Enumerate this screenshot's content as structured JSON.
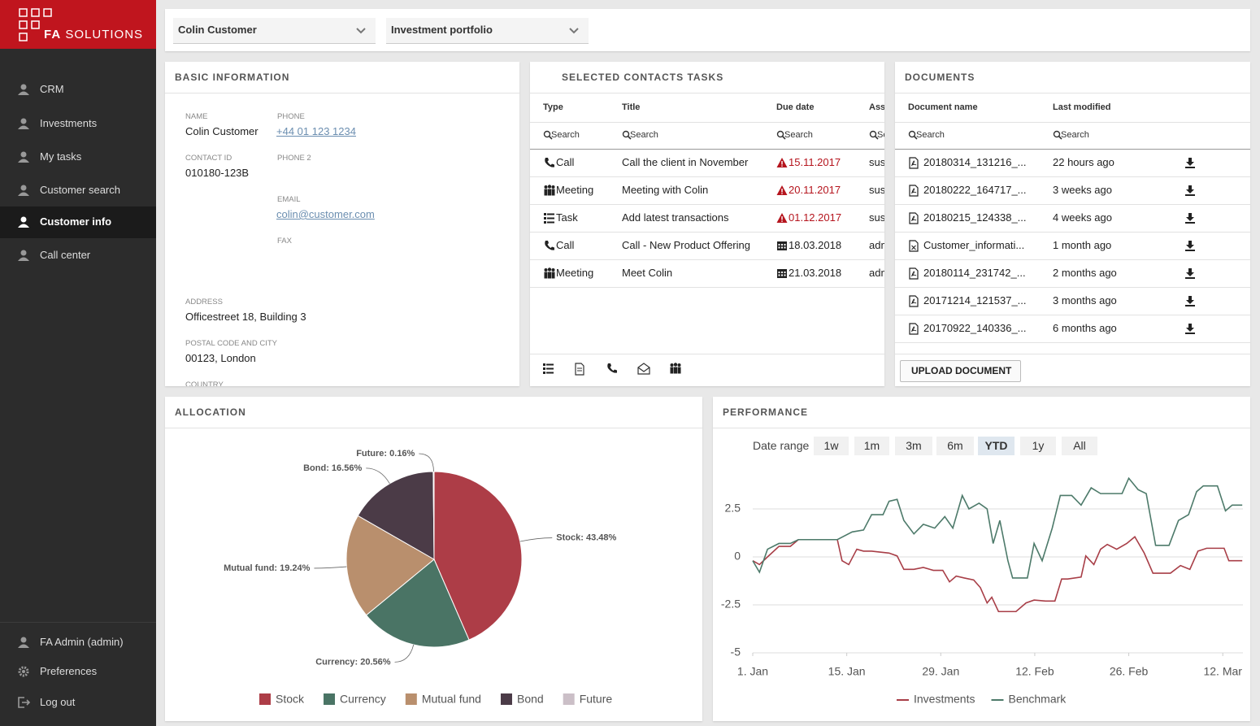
{
  "sidebar": {
    "logo_bold": "FA",
    "logo_text": "SOLUTIONS",
    "nav": [
      {
        "label": "CRM"
      },
      {
        "label": "Investments"
      },
      {
        "label": "My tasks"
      },
      {
        "label": "Customer search"
      },
      {
        "label": "Customer info",
        "active": true
      },
      {
        "label": "Call center"
      }
    ],
    "user_menu": [
      "FA Admin (admin)",
      "Preferences",
      "Log out"
    ]
  },
  "selectors": [
    "Colin Customer",
    "Investment portfolio"
  ],
  "basic_information": {
    "title": "BASIC INFORMATION",
    "fields": [
      {
        "label": "NAME",
        "value": "Colin Customer"
      },
      {
        "label": "PHONE",
        "value": "+44 01 123 1234",
        "link": true
      },
      {
        "label": "CONTACT ID",
        "value": "010180-123B"
      },
      {
        "label": "PHONE 2"
      },
      {
        "label": "EMAIL",
        "value": "colin@customer.com",
        "link": true
      },
      {
        "label": "FAX"
      },
      {
        "label": "ADDRESS",
        "value": "Officestreet 18, Building 3"
      },
      {
        "label": "POSTAL CODE AND CITY",
        "value": "00123, London"
      },
      {
        "label": "COUNTRY"
      }
    ]
  },
  "tasks": {
    "title": "SELECTED CONTACTS TASKS",
    "columns": [
      "Type",
      "Title",
      "Due date",
      "Assi"
    ],
    "search_placeholder": "Search",
    "rows": [
      {
        "type": "Call",
        "title": "Call the client in November",
        "due": "15.11.2017",
        "overdue": true,
        "assignee": "sus"
      },
      {
        "type": "Meeting",
        "title": "Meeting with Colin",
        "due": "20.11.2017",
        "overdue": true,
        "assignee": "sus"
      },
      {
        "type": "Task",
        "title": "Add latest transactions",
        "due": "01.12.2017",
        "overdue": true,
        "assignee": "sus"
      },
      {
        "type": "Call",
        "title": "Call - New Product Offering",
        "due": "18.03.2018",
        "overdue": false,
        "assignee": "adm"
      },
      {
        "type": "Meeting",
        "title": "Meet Colin",
        "due": "21.03.2018",
        "overdue": false,
        "assignee": "adm"
      }
    ]
  },
  "documents": {
    "title": "DOCUMENTS",
    "columns": [
      "Document name",
      "Last modified"
    ],
    "search_placeholder": "Search",
    "rows": [
      {
        "name": "20180314_131216_...",
        "modified": "22 hours ago"
      },
      {
        "name": "20180222_164717_...",
        "modified": "3 weeks ago"
      },
      {
        "name": "20180215_124338_...",
        "modified": "4 weeks ago"
      },
      {
        "name": "Customer_informati...",
        "modified": "1 month ago"
      },
      {
        "name": "20180114_231742_...",
        "modified": "2 months ago"
      },
      {
        "name": "20171214_121537_...",
        "modified": "3 months ago"
      },
      {
        "name": "20170922_140336_...",
        "modified": "6 months ago"
      }
    ],
    "upload_button": "UPLOAD DOCUMENT"
  },
  "allocation": {
    "title": "ALLOCATION"
  },
  "performance": {
    "title": "PERFORMANCE",
    "date_range_label": "Date range",
    "ranges": [
      {
        "label": "1w"
      },
      {
        "label": "1m"
      },
      {
        "label": "3m"
      },
      {
        "label": "6m"
      },
      {
        "label": "YTD",
        "active": true
      },
      {
        "label": "1y"
      },
      {
        "label": "All"
      }
    ]
  },
  "chart_data": [
    {
      "type": "pie",
      "categories": [
        "Stock",
        "Currency",
        "Mutual fund",
        "Bond",
        "Future"
      ],
      "values": [
        43.48,
        20.56,
        19.24,
        16.56,
        0.16
      ],
      "value_labels": [
        "Stock: 43.48%",
        "Currency: 20.56%",
        "Mutual fund: 19.24%",
        "Bond: 16.56%",
        "Future: 0.16%"
      ],
      "colors": [
        "#ad3d47",
        "#4a7465",
        "#b98f6d",
        "#4b3b47",
        "#cbbfc7"
      ],
      "legend": "bottom"
    },
    {
      "type": "line",
      "xlim": [
        0,
        73
      ],
      "xticks": [
        {
          "value": 0,
          "label": "1. Jan"
        },
        {
          "value": 14,
          "label": "15. Jan"
        },
        {
          "value": 28,
          "label": "29. Jan"
        },
        {
          "value": 42,
          "label": "12. Feb"
        },
        {
          "value": 56,
          "label": "26. Feb"
        },
        {
          "value": 70,
          "label": "12. Mar"
        }
      ],
      "ylim": [
        -5,
        5
      ],
      "yticks": [
        -5,
        -2.5,
        0,
        2.5
      ],
      "grid": true,
      "legend": "bottom",
      "series": [
        {
          "name": "Investments",
          "color": "#a83e47",
          "x": [
            0,
            1.0,
            2.2,
            3.9,
            5.6,
            6.8,
            12.6,
            13.3,
            14.3,
            15.5,
            16.5,
            17.7,
            20.3,
            21.5,
            22.5,
            24.0,
            25.4,
            26.9,
            28.3,
            29.3,
            30.3,
            31.5,
            32.9,
            33.9,
            34.9,
            35.6,
            36.6,
            37.5,
            39.2,
            40.7,
            41.9,
            43.6,
            45.0,
            46.0,
            46.9,
            48.9,
            49.6,
            50.8,
            51.8,
            52.8,
            54.2,
            55.7,
            56.9,
            58.3,
            59.6,
            61.0,
            62.2,
            63.7,
            65.1,
            66.3,
            67.6,
            70.2,
            70.9,
            72.9
          ],
          "values": [
            -0.2,
            -0.4,
            0,
            0.55,
            0.55,
            0.9,
            0.9,
            -0.2,
            -0.4,
            0.4,
            0.3,
            0.3,
            0.2,
            0.05,
            -0.65,
            -0.65,
            -0.55,
            -0.7,
            -0.7,
            -1.3,
            -1.0,
            -1.1,
            -1.2,
            -1.6,
            -2.4,
            -2.1,
            -2.85,
            -2.85,
            -2.85,
            -2.4,
            -2.25,
            -2.3,
            -2.3,
            -1.15,
            -1.15,
            -1.05,
            0.05,
            -0.4,
            0.4,
            0.65,
            0.4,
            0.7,
            1.05,
            0.2,
            -0.85,
            -0.85,
            -0.85,
            -0.45,
            -0.65,
            0.3,
            0.45,
            0.45,
            -0.2,
            -0.2
          ]
        },
        {
          "name": "Benchmark",
          "color": "#4d7a6a",
          "x": [
            0,
            1.0,
            2.2,
            3.9,
            5.6,
            6.8,
            9.0,
            12.6,
            14.8,
            16.5,
            17.7,
            19.4,
            20.3,
            21.5,
            22.5,
            24.0,
            25.4,
            27.1,
            28.6,
            29.8,
            31.2,
            32.2,
            33.7,
            34.9,
            35.8,
            36.8,
            38.0,
            38.7,
            40.9,
            41.9,
            43.1,
            44.6,
            45.8,
            47.5,
            48.9,
            50.4,
            51.8,
            53.3,
            55.0,
            56.0,
            57.4,
            58.6,
            60.0,
            62.0,
            63.4,
            64.9,
            66.1,
            67.1,
            69.2,
            70.4,
            71.4,
            72.9
          ],
          "values": [
            -0.2,
            -0.8,
            0.4,
            0.7,
            0.7,
            0.9,
            0.9,
            0.9,
            1.3,
            1.4,
            2.2,
            2.2,
            2.9,
            3.0,
            1.9,
            1.2,
            1.7,
            1.5,
            2.1,
            1.5,
            3.2,
            2.5,
            2.8,
            2.5,
            0.7,
            1.9,
            -0.2,
            -1.1,
            -1.1,
            0.7,
            -0.2,
            1.5,
            3.2,
            3.2,
            2.7,
            3.6,
            3.3,
            3.3,
            3.3,
            4.1,
            3.5,
            3.3,
            0.6,
            0.6,
            1.9,
            2.2,
            3.4,
            3.7,
            3.7,
            2.4,
            2.7,
            2.7
          ]
        }
      ]
    }
  ]
}
